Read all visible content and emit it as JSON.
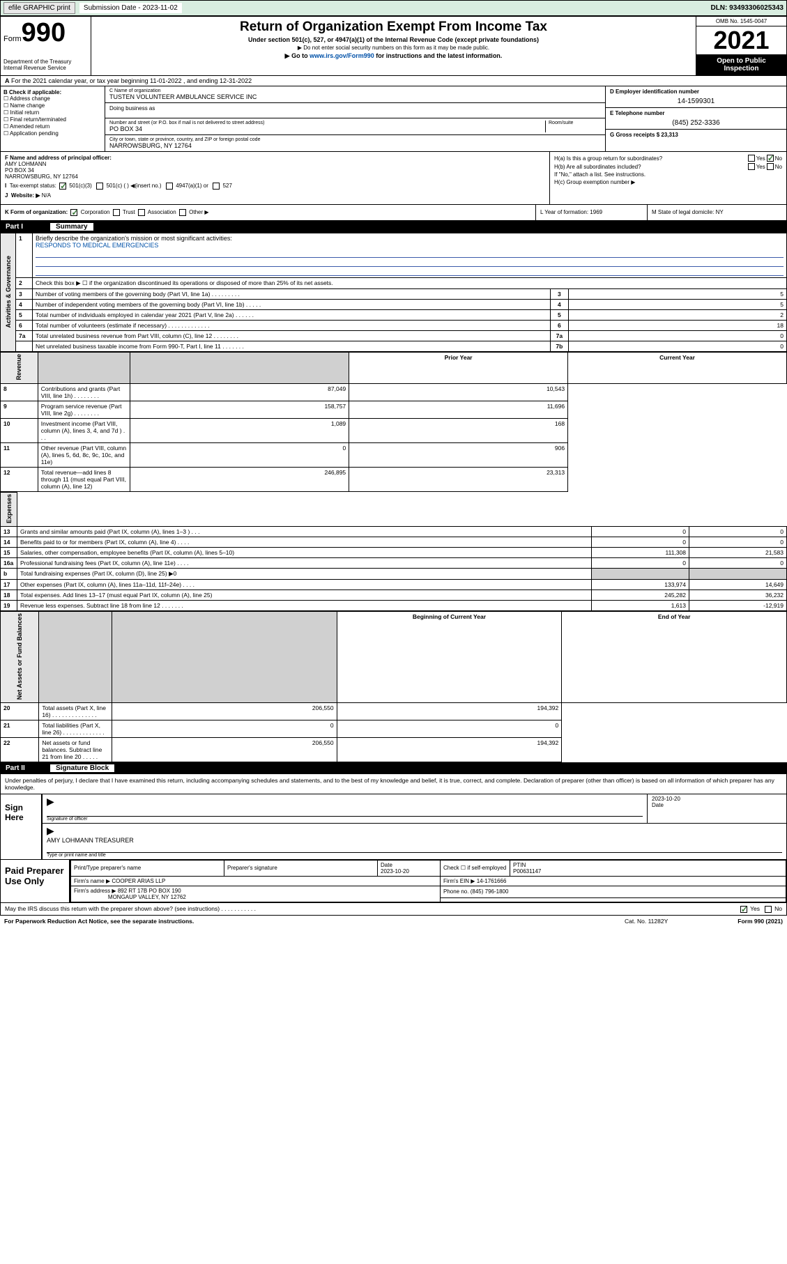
{
  "topbar": {
    "efile": "efile GRAPHIC print",
    "subdate_lbl": "Submission Date - 2023-11-02",
    "dln": "DLN: 93493306025343"
  },
  "header": {
    "form_label": "Form",
    "form_no": "990",
    "dept": "Department of the Treasury Internal Revenue Service",
    "title": "Return of Organization Exempt From Income Tax",
    "sub1": "Under section 501(c), 527, or 4947(a)(1) of the Internal Revenue Code (except private foundations)",
    "sub2": "▶ Do not enter social security numbers on this form as it may be made public.",
    "sub3_pre": "▶ Go to ",
    "sub3_link": "www.irs.gov/Form990",
    "sub3_post": " for instructions and the latest information.",
    "omb": "OMB No. 1545-0047",
    "year": "2021",
    "open": "Open to Public Inspection"
  },
  "row_a": "For the 2021 calendar year, or tax year beginning 11-01-2022   , and ending 12-31-2022",
  "col_b": {
    "title": "B Check if applicable:",
    "items": [
      "Address change",
      "Name change",
      "Initial return",
      "Final return/terminated",
      "Amended return",
      "Application pending"
    ]
  },
  "col_c": {
    "name_lbl": "C Name of organization",
    "name": "TUSTEN VOLUNTEER AMBULANCE SERVICE INC",
    "dba_lbl": "Doing business as",
    "street_lbl": "Number and street (or P.O. box if mail is not delivered to street address)",
    "street": "PO BOX 34",
    "room_lbl": "Room/suite",
    "city_lbl": "City or town, state or province, country, and ZIP or foreign postal code",
    "city": "NARROWSBURG, NY  12764"
  },
  "col_d": {
    "ein_lbl": "D Employer identification number",
    "ein": "14-1599301",
    "tel_lbl": "E Telephone number",
    "tel": "(845) 252-3336",
    "gross_lbl": "G Gross receipts $ 23,313"
  },
  "col_f": {
    "f_lbl": "F  Name and address of principal officer:",
    "f_name": "AMY LOHMANN",
    "f_addr1": "PO BOX 34",
    "f_addr2": "NARROWSBURG, NY  12764",
    "i_lbl": "Tax-exempt status:",
    "i_opts": [
      "501(c)(3)",
      "501(c) (  ) ◀(insert no.)",
      "4947(a)(1) or",
      "527"
    ],
    "j_lbl": "Website: ▶",
    "j_val": "N/A"
  },
  "col_h": {
    "ha": "H(a)  Is this a group return for subordinates?",
    "hb": "H(b)  Are all subordinates included?",
    "hb_note": "If \"No,\" attach a list. See instructions.",
    "hc": "H(c)  Group exemption number ▶",
    "yes": "Yes",
    "no": "No"
  },
  "row_k": {
    "k_lbl": "K Form of organization:",
    "k_opts": [
      "Corporation",
      "Trust",
      "Association",
      "Other ▶"
    ],
    "l_lbl": "L Year of formation: 1969",
    "m_lbl": "M State of legal domicile: NY"
  },
  "part1": {
    "num": "Part I",
    "title": "Summary"
  },
  "briefly": {
    "num": "1",
    "lbl": "Briefly describe the organization's mission or most significant activities:",
    "val": "RESPONDS TO MEDICAL EMERGENCIES"
  },
  "line2": "Check this box ▶ ☐  if the organization discontinued its operations or disposed of more than 25% of its net assets.",
  "side_labels": {
    "gov": "Activities & Governance",
    "rev": "Revenue",
    "exp": "Expenses",
    "net": "Net Assets or Fund Balances"
  },
  "gov_lines": [
    {
      "n": "3",
      "d": "Number of voting members of the governing body (Part VI, line 1a)  .  .  .  .  .  .  .  .  .",
      "c": "3",
      "v": "5"
    },
    {
      "n": "4",
      "d": "Number of independent voting members of the governing body (Part VI, line 1b)  .  .  .  .  .",
      "c": "4",
      "v": "5"
    },
    {
      "n": "5",
      "d": "Total number of individuals employed in calendar year 2021 (Part V, line 2a)  .  .  .  .  .  .",
      "c": "5",
      "v": "2"
    },
    {
      "n": "6",
      "d": "Total number of volunteers (estimate if necessary)  .  .  .  .  .  .  .  .  .  .  .  .  .",
      "c": "6",
      "v": "18"
    },
    {
      "n": "7a",
      "d": "Total unrelated business revenue from Part VIII, column (C), line 12  .  .  .  .  .  .  .  .",
      "c": "7a",
      "v": "0"
    },
    {
      "n": "",
      "d": "Net unrelated business taxable income from Form 990-T, Part I, line 11  .  .  .  .  .  .  .",
      "c": "7b",
      "v": "0"
    }
  ],
  "col_hdrs": {
    "prior": "Prior Year",
    "current": "Current Year"
  },
  "rev_lines": [
    {
      "n": "8",
      "d": "Contributions and grants (Part VIII, line 1h)  .  .  .  .  .  .  .  .",
      "p": "87,049",
      "c": "10,543"
    },
    {
      "n": "9",
      "d": "Program service revenue (Part VIII, line 2g)  .  .  .  .  .  .  .  .",
      "p": "158,757",
      "c": "11,696"
    },
    {
      "n": "10",
      "d": "Investment income (Part VIII, column (A), lines 3, 4, and 7d )  .  .  .",
      "p": "1,089",
      "c": "168"
    },
    {
      "n": "11",
      "d": "Other revenue (Part VIII, column (A), lines 5, 6d, 8c, 9c, 10c, and 11e)",
      "p": "0",
      "c": "906"
    },
    {
      "n": "12",
      "d": "Total revenue—add lines 8 through 11 (must equal Part VIII, column (A), line 12)",
      "p": "246,895",
      "c": "23,313"
    }
  ],
  "exp_lines": [
    {
      "n": "13",
      "d": "Grants and similar amounts paid (Part IX, column (A), lines 1–3 )  .  .  .",
      "p": "0",
      "c": "0"
    },
    {
      "n": "14",
      "d": "Benefits paid to or for members (Part IX, column (A), line 4)  .  .  .  .",
      "p": "0",
      "c": "0"
    },
    {
      "n": "15",
      "d": "Salaries, other compensation, employee benefits (Part IX, column (A), lines 5–10)",
      "p": "111,308",
      "c": "21,583"
    },
    {
      "n": "16a",
      "d": "Professional fundraising fees (Part IX, column (A), line 11e)  .  .  .  .",
      "p": "0",
      "c": "0"
    },
    {
      "n": "b",
      "d": "Total fundraising expenses (Part IX, column (D), line 25) ▶0",
      "p": "",
      "c": "",
      "grey": true
    },
    {
      "n": "17",
      "d": "Other expenses (Part IX, column (A), lines 11a–11d, 11f–24e)  .  .  .  .",
      "p": "133,974",
      "c": "14,649"
    },
    {
      "n": "18",
      "d": "Total expenses. Add lines 13–17 (must equal Part IX, column (A), line 25)",
      "p": "245,282",
      "c": "36,232"
    },
    {
      "n": "19",
      "d": "Revenue less expenses. Subtract line 18 from line 12  .  .  .  .  .  .  .",
      "p": "1,613",
      "c": "-12,919"
    }
  ],
  "net_hdrs": {
    "beg": "Beginning of Current Year",
    "end": "End of Year"
  },
  "net_lines": [
    {
      "n": "20",
      "d": "Total assets (Part X, line 16)  .  .  .  .  .  .  .  .  .  .  .  .  .  .",
      "p": "206,550",
      "c": "194,392"
    },
    {
      "n": "21",
      "d": "Total liabilities (Part X, line 26)  .  .  .  .  .  .  .  .  .  .  .  .  .",
      "p": "0",
      "c": "0"
    },
    {
      "n": "22",
      "d": "Net assets or fund balances. Subtract line 21 from line 20  .  .  .  .  .",
      "p": "206,550",
      "c": "194,392"
    }
  ],
  "part2": {
    "num": "Part II",
    "title": "Signature Block"
  },
  "sig_intro": "Under penalties of perjury, I declare that I have examined this return, including accompanying schedules and statements, and to the best of my knowledge and belief, it is true, correct, and complete. Declaration of preparer (other than officer) is based on all information of which preparer has any knowledge.",
  "sig": {
    "here": "Sign Here",
    "sig_lbl": "Signature of officer",
    "date_lbl": "Date",
    "date": "2023-10-20",
    "name": "AMY LOHMANN  TREASURER",
    "name_lbl": "Type or print name and title"
  },
  "paid": {
    "title": "Paid Preparer Use Only",
    "h1": "Print/Type preparer's name",
    "h2": "Preparer's signature",
    "h3": "Date",
    "h3v": "2023-10-20",
    "h4": "Check ☐ if self-employed",
    "h5": "PTIN",
    "h5v": "P00631147",
    "firm_lbl": "Firm's name    ▶",
    "firm": "COOPER ARIAS LLP",
    "ein_lbl": "Firm's EIN ▶",
    "ein": "14-1761666",
    "addr_lbl": "Firm's address ▶",
    "addr1": "892 RT 17B PO BOX 190",
    "addr2": "MONGAUP VALLEY, NY  12762",
    "phone_lbl": "Phone no.",
    "phone": "(845) 796-1800"
  },
  "footer": {
    "discuss": "May the IRS discuss this return with the preparer shown above? (see instructions)  .  .  .  .  .  .  .  .  .  .  .",
    "yes": "Yes",
    "no": "No",
    "paperwork": "For Paperwork Reduction Act Notice, see the separate instructions.",
    "cat": "Cat. No. 11282Y",
    "formno": "Form 990 (2021)"
  }
}
